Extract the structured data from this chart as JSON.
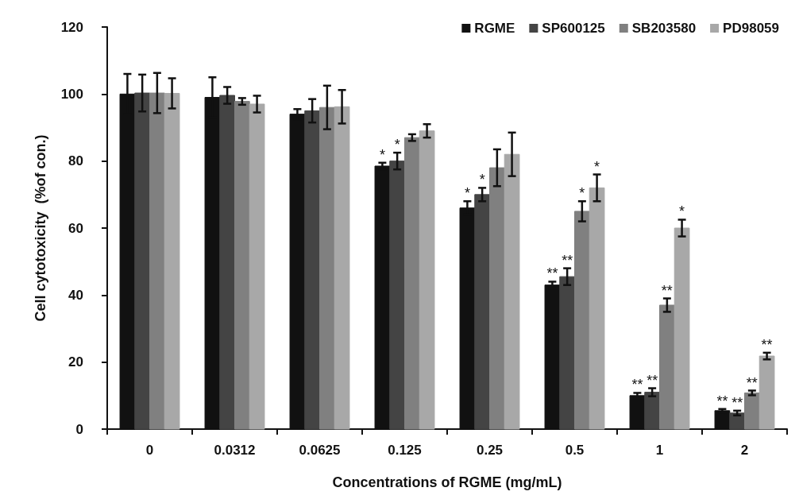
{
  "chart_data": {
    "type": "bar",
    "xlabel": "Concentrations of RGME (mg/mL)",
    "ylabel": "Cell cytotoxicity  (%of con.)",
    "categories": [
      "0",
      "0.0312",
      "0.0625",
      "0.125",
      "0.25",
      "0.5",
      "1",
      "2"
    ],
    "series": [
      {
        "name": "RGME",
        "color": "#111111",
        "values": [
          100,
          99,
          94,
          78.5,
          66,
          43,
          10,
          5.5
        ],
        "errors": [
          6,
          6,
          1.5,
          1,
          2,
          1,
          0.8,
          0.5
        ],
        "value_labels": [
          null,
          null,
          null,
          "*",
          "*",
          "**",
          "**",
          "**"
        ]
      },
      {
        "name": "SP600125",
        "color": "#444444",
        "values": [
          100.3,
          99.6,
          95,
          80,
          70,
          45.5,
          11,
          4.8
        ],
        "errors": [
          5.5,
          2.5,
          3.5,
          2.5,
          2,
          2.5,
          1.2,
          0.7
        ],
        "value_labels": [
          null,
          null,
          null,
          "*",
          "*",
          "**",
          "**",
          "**"
        ]
      },
      {
        "name": "SB203580",
        "color": "#808080",
        "values": [
          100.3,
          97.8,
          96,
          87,
          78,
          65,
          37,
          10.8
        ],
        "errors": [
          6,
          1,
          6.5,
          1,
          5.5,
          3,
          2,
          0.7
        ],
        "value_labels": [
          null,
          null,
          null,
          null,
          null,
          "*",
          "**",
          "**"
        ]
      },
      {
        "name": "PD98059",
        "color": "#a8a8a8",
        "values": [
          100.2,
          97,
          96.2,
          89,
          82,
          72,
          60,
          21.8
        ],
        "errors": [
          4.5,
          2.5,
          5,
          2,
          6.5,
          4,
          2.5,
          1
        ],
        "value_labels": [
          null,
          null,
          null,
          null,
          null,
          "*",
          "*",
          "**"
        ]
      }
    ],
    "ylim": [
      0,
      120
    ],
    "yticks": [
      0,
      20,
      40,
      60,
      80,
      100,
      120
    ],
    "grid": false,
    "legend": "top right"
  }
}
